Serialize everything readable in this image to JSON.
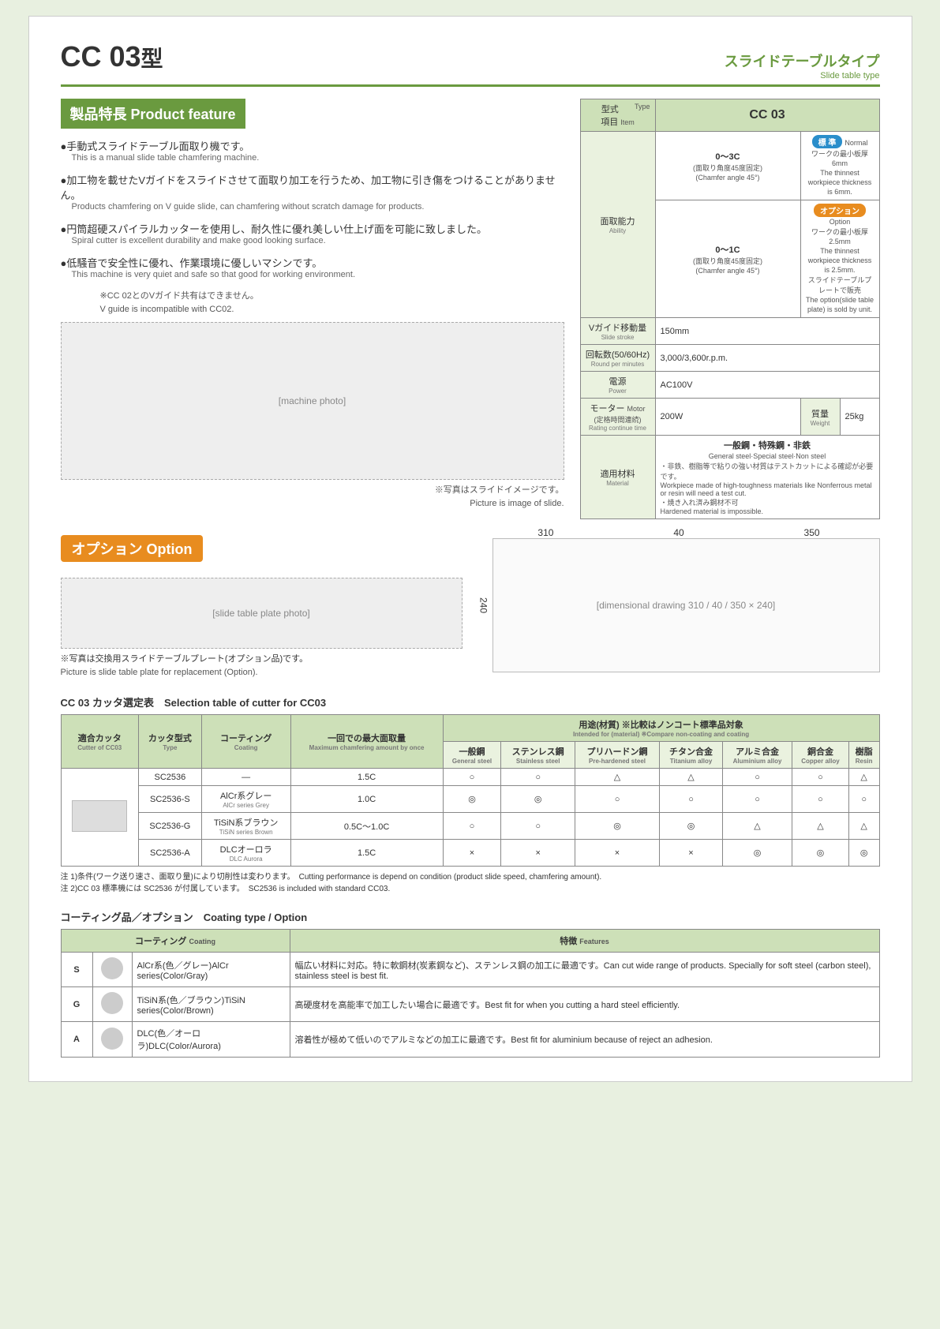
{
  "header": {
    "model": "CC 03",
    "model_suffix": "型",
    "subtitle_jp": "スライドテーブルタイプ",
    "subtitle_en": "Slide table type"
  },
  "features": {
    "header": "製品特長 Product feature",
    "items": [
      {
        "jp": "手動式スライドテーブル面取り機です。",
        "en": "This is a manual slide table chamfering machine."
      },
      {
        "jp": "加工物を載せたVガイドをスライドさせて面取り加工を行うため、加工物に引き傷をつけることがありません。",
        "en": "Products chamfering on V guide slide, can chamfering without scratch damage for products."
      },
      {
        "jp": "円筒超硬スパイラルカッターを使用し、耐久性に優れ美しい仕上げ面を可能に致しました。",
        "en": "Spiral cutter is excellent durability and make good looking surface."
      },
      {
        "jp": "低騒音で安全性に優れ、作業環境に優しいマシンです。",
        "en": "This machine is very quiet and safe so that good for working environment."
      }
    ],
    "cc02_note_jp": "※CC 02とのVガイド共有はできません。",
    "cc02_note_en": "V guide is incompatible with CC02.",
    "slide_note_jp": "※写真はスライドイメージです。",
    "slide_note_en": "Picture is image of slide."
  },
  "specs": {
    "header_item_jp": "項目",
    "header_item_en": "Item",
    "header_type_jp": "型式",
    "header_type_pre": "Type",
    "model": "CC 03",
    "badge_std_jp": "標 準",
    "badge_std_en": "Normal",
    "badge_opt_jp": "オプション",
    "badge_opt_en": "Option",
    "ability_jp": "面取能力",
    "ability_en": "Ability",
    "ability_std_val": "0～3C",
    "ability_std_sub": "(面取り角度45度固定)",
    "ability_std_sub_en": "(Chamfer angle 45°)",
    "ability_std_note_jp": "ワークの最小板厚6mm",
    "ability_std_note_en": "The thinnest workpiece thickness is 6mm.",
    "ability_opt_val": "0～1C",
    "ability_opt_sub": "(面取り角度45度固定)",
    "ability_opt_sub_en": "(Chamfer angle 45°)",
    "ability_opt_note_jp": "ワークの最小板厚2.5mm",
    "ability_opt_note_en": "The thinnest workpiece thickness is 2.5mm.",
    "ability_opt_note2_jp": "スライドテーブルプレートで販売",
    "ability_opt_note2_en": "The option(slide table plate) is sold by unit.",
    "stroke_jp": "Vガイド移動量",
    "stroke_en": "Slide stroke",
    "stroke_val": "150mm",
    "rpm_jp": "回転数(50/60Hz)",
    "rpm_en": "Round per minutes",
    "rpm_val": "3,000/3,600r.p.m.",
    "power_jp": "電源",
    "power_en": "Power",
    "power_val": "AC100V",
    "motor_jp": "モーター",
    "motor_en": "Motor",
    "motor_sub": "(定格時間連続)",
    "motor_sub_en": "Rating continue time",
    "motor_val": "200W",
    "weight_jp": "質量",
    "weight_en": "Weight",
    "weight_val": "25kg",
    "material_jp": "適用材料",
    "material_en": "Material",
    "material_line1_jp": "一般鋼・特殊鋼・非鉄",
    "material_line1_en": "General steel·Special steel·Non steel",
    "material_line2_jp": "・非鉄、樹脂等で粘りの強い材質はテストカットによる確認が必要です。",
    "material_line2_en": "Workpiece made of high-toughness materials like Nonferrous metal or resin will need a test cut.",
    "material_line3_jp": "・焼き入れ済み鋼材不可",
    "material_line3_en": "Hardened material is impossible."
  },
  "option": {
    "header": "オプション Option",
    "caption_jp": "※写真は交換用スライドテーブルプレート(オプション品)です。",
    "caption_en": "Picture is slide table plate for replacement (Option)."
  },
  "dimensions": {
    "w1": "310",
    "w2": "40",
    "w3": "350",
    "h": "240"
  },
  "selection": {
    "title": "CC 03 カッタ選定表　Selection table of cutter for CC03",
    "col_cutter_jp": "適合カッタ",
    "col_cutter_en": "Cutter of CC03",
    "col_type_jp": "カッタ型式",
    "col_type_en": "Type",
    "col_coating_jp": "コーティング",
    "col_coating_en": "Coating",
    "col_max_jp": "一回での最大面取量",
    "col_max_en": "Maximum chamfering amount by once",
    "col_use_jp": "用途(材質) ※比較はノンコート標準品対象",
    "col_use_en": "Intended for (material) ※Compare non-coating and coating",
    "mat": [
      {
        "jp": "一般鋼",
        "en": "General steel"
      },
      {
        "jp": "ステンレス鋼",
        "en": "Stainless steel"
      },
      {
        "jp": "プリハードン鋼",
        "en": "Pre-hardened steel"
      },
      {
        "jp": "チタン合金",
        "en": "Titanium alloy"
      },
      {
        "jp": "アルミ合金",
        "en": "Aluminium alloy"
      },
      {
        "jp": "銅合金",
        "en": "Copper alloy"
      },
      {
        "jp": "樹脂",
        "en": "Resin"
      }
    ],
    "rows": [
      {
        "type": "SC2536",
        "coat": "―",
        "coat_en": "",
        "max": "1.5C",
        "m": [
          "○",
          "○",
          "△",
          "△",
          "○",
          "○",
          "△"
        ]
      },
      {
        "type": "SC2536-S",
        "coat": "AlCr系グレー",
        "coat_en": "AlCr series Grey",
        "max": "1.0C",
        "m": [
          "◎",
          "◎",
          "○",
          "○",
          "○",
          "○",
          "○"
        ]
      },
      {
        "type": "SC2536-G",
        "coat": "TiSiN系ブラウン",
        "coat_en": "TiSiN series Brown",
        "max": "0.5C～1.0C",
        "m": [
          "○",
          "○",
          "◎",
          "◎",
          "△",
          "△",
          "△"
        ]
      },
      {
        "type": "SC2536-A",
        "coat": "DLCオーロラ",
        "coat_en": "DLC Aurora",
        "max": "1.5C",
        "m": [
          "×",
          "×",
          "×",
          "×",
          "◎",
          "◎",
          "◎"
        ]
      }
    ],
    "note1_jp": "注 1)条件(ワーク送り速さ、面取り量)により切削性は変わります。",
    "note1_en": "Cutting performance is depend on condition (product slide speed, chamfering amount).",
    "note2_jp": "注 2)CC 03 標準機には SC2536 が付属しています。",
    "note2_en": "SC2536 is included with standard CC03."
  },
  "coating": {
    "title": "コーティング品／オプション　Coating type / Option",
    "col_coat_jp": "コーティング",
    "col_coat_en": "Coating",
    "col_feat_jp": "特徴",
    "col_feat_en": "Features",
    "rows": [
      {
        "code": "S",
        "name_jp": "AlCr系(色／グレー)",
        "name_en": "AlCr series(Color/Gray)",
        "feat_jp": "幅広い材料に対応。特に軟鋼材(炭素鋼など)、ステンレス鋼の加工に最適です。",
        "feat_en": "Can cut wide range of products. Specially for soft steel (carbon steel), stainless steel is best fit."
      },
      {
        "code": "G",
        "name_jp": "TiSiN系(色／ブラウン)",
        "name_en": "TiSiN series(Color/Brown)",
        "feat_jp": "高硬度材を高能率で加工したい場合に最適です。",
        "feat_en": "Best fit for when you cutting a hard steel efficiently."
      },
      {
        "code": "A",
        "name_jp": "DLC(色／オーロラ)",
        "name_en": "DLC(Color/Aurora)",
        "feat_jp": "溶着性が極めて低いのでアルミなどの加工に最適です。",
        "feat_en": "Best fit for aluminium because of reject an adhesion."
      }
    ]
  },
  "placeholders": {
    "machine": "[machine photo]",
    "option_plate": "[slide table plate photo]",
    "drawing": "[dimensional drawing 310 / 40 / 350 × 240]"
  }
}
